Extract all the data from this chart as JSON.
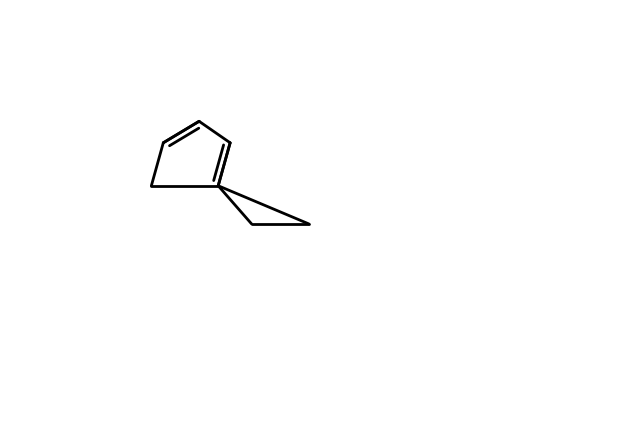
{
  "background_color": "#ffffff",
  "line_color": "#000000",
  "line_width": 2.0,
  "font_size": 13,
  "figsize": [
    6.4,
    4.34
  ],
  "dpi": 100
}
